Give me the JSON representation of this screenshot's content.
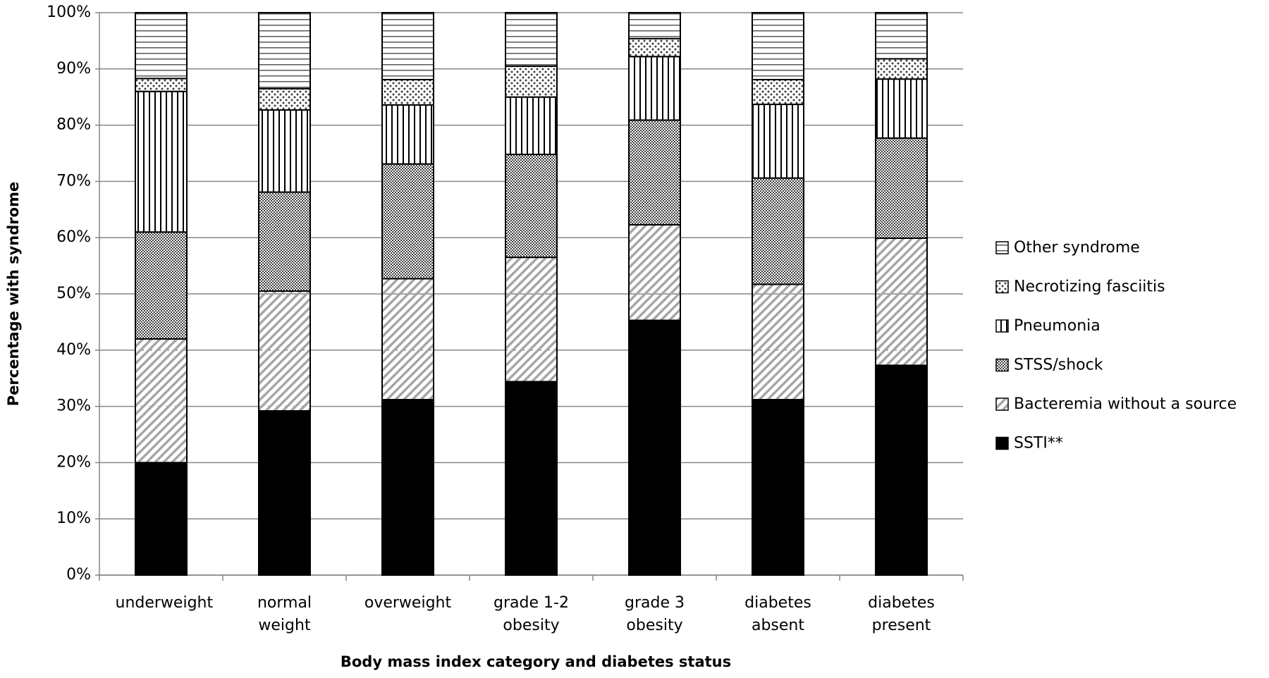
{
  "chart_data": {
    "type": "stacked_bar",
    "x_label": "Body mass index category and diabetes status",
    "y_label": "Percentage with syndrome",
    "categories": [
      "underweight",
      "normal weight",
      "overweight",
      "grade 1-2 obesity",
      "grade 3 obesity",
      "diabetes absent",
      "diabetes present"
    ],
    "series": [
      {
        "name": "SSTI**",
        "color": "#000000",
        "pattern": "solid",
        "values": [
          20.0,
          29.2,
          31.2,
          34.4,
          45.3,
          31.2,
          37.3
        ]
      },
      {
        "name": "Bacteremia without a source",
        "color": "#a6a6a6",
        "pattern": "diagonal",
        "values": [
          22.0,
          21.3,
          21.5,
          22.1,
          17.0,
          20.5,
          22.6
        ]
      },
      {
        "name": "STSS/shock",
        "color": "#404040",
        "pattern": "checker",
        "values": [
          19.0,
          17.6,
          20.4,
          18.3,
          18.6,
          18.9,
          17.8
        ]
      },
      {
        "name": "Pneumonia",
        "color": "#000000",
        "pattern": "vertical",
        "values": [
          25.0,
          14.6,
          10.5,
          10.2,
          11.3,
          13.1,
          10.5
        ]
      },
      {
        "name": "Necrotizing fasciitis",
        "color": "#404040",
        "pattern": "dots",
        "values": [
          2.3,
          3.8,
          4.5,
          5.5,
          3.2,
          4.4,
          3.6
        ]
      },
      {
        "name": "Other syndrome",
        "color": "#595959",
        "pattern": "horizontal",
        "values": [
          11.7,
          13.5,
          11.9,
          9.5,
          4.6,
          11.9,
          8.2
        ]
      }
    ],
    "ylim": [
      0,
      100
    ],
    "yticks": [
      {
        "value": 0,
        "label": "0%"
      },
      {
        "value": 10,
        "label": "10%"
      },
      {
        "value": 20,
        "label": "20%"
      },
      {
        "value": 30,
        "label": "30%"
      },
      {
        "value": 40,
        "label": "40%"
      },
      {
        "value": 50,
        "label": "50%"
      },
      {
        "value": 60,
        "label": "60%"
      },
      {
        "value": 70,
        "label": "70%"
      },
      {
        "value": 80,
        "label": "80%"
      },
      {
        "value": 90,
        "label": "90%"
      },
      {
        "value": 100,
        "label": "100%"
      }
    ],
    "grid": true,
    "legend": "right"
  }
}
